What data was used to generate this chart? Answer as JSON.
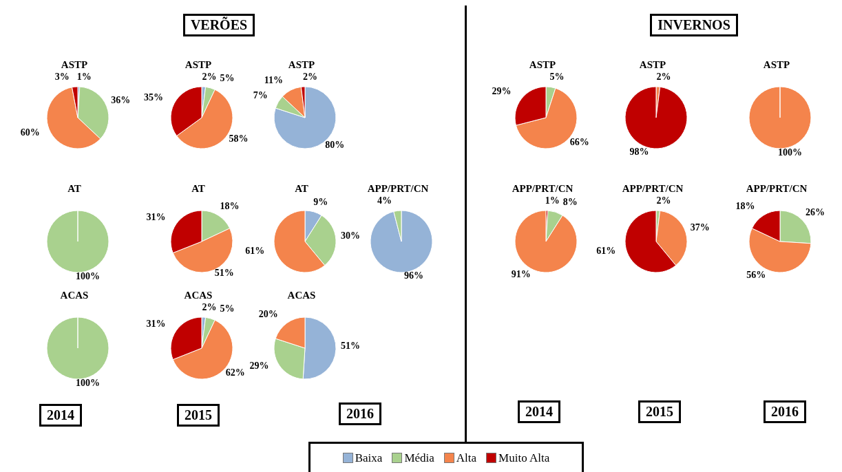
{
  "chart_data": [
    {
      "type": "pie",
      "title": "ASTP",
      "categories": [
        "Baixa",
        "Média",
        "Alta",
        "Muito Alta"
      ],
      "values": [
        1,
        36,
        60,
        3
      ],
      "colors": [
        "#95b3d7",
        "#a9d18e",
        "#f4844c",
        "#c00000"
      ],
      "value_labels": [
        "1%",
        "36%",
        "60%",
        "3%"
      ],
      "legend": "bottom"
    },
    {
      "type": "pie",
      "title": "ASTP",
      "categories": [
        null,
        null,
        null,
        null
      ],
      "values": [
        2,
        5,
        58,
        35
      ],
      "colors": [
        "#95b3d7",
        "#a9d18e",
        "#f4844c",
        "#c00000"
      ],
      "value_labels": [
        "2%",
        "5%",
        "58%",
        "35%"
      ]
    },
    {
      "type": "pie",
      "title": "ASTP",
      "categories": [
        null,
        null,
        null,
        null
      ],
      "values": [
        80,
        7,
        11,
        2
      ],
      "colors": [
        "#95b3d7",
        "#a9d18e",
        "#f4844c",
        "#c00000"
      ],
      "value_labels": [
        "80%",
        "7%",
        "11%",
        "2%"
      ]
    },
    {
      "type": "pie",
      "title": "AT",
      "categories": [
        null
      ],
      "values": [
        100
      ],
      "colors": [
        "#a9d18e"
      ],
      "value_labels": [
        "100%"
      ]
    },
    {
      "type": "pie",
      "title": "AT",
      "categories": [
        null,
        null,
        null
      ],
      "values": [
        18,
        51,
        31
      ],
      "colors": [
        "#a9d18e",
        "#f4844c",
        "#c00000"
      ],
      "value_labels": [
        "18%",
        "51%",
        "31%"
      ]
    },
    {
      "type": "pie",
      "title": "AT",
      "categories": [
        null,
        null,
        null
      ],
      "values": [
        9,
        30,
        61
      ],
      "colors": [
        "#95b3d7",
        "#a9d18e",
        "#f4844c"
      ],
      "value_labels": [
        "9%",
        "30%",
        "61%"
      ]
    },
    {
      "type": "pie",
      "title": "APP/PRT/CN",
      "categories": [
        null,
        null
      ],
      "values": [
        96,
        4
      ],
      "colors": [
        "#95b3d7",
        "#a9d18e"
      ],
      "value_labels": [
        "96%",
        "4%"
      ]
    },
    {
      "type": "pie",
      "title": "ACAS",
      "categories": [
        null
      ],
      "values": [
        100
      ],
      "colors": [
        "#a9d18e"
      ],
      "value_labels": [
        "100%"
      ]
    },
    {
      "type": "pie",
      "title": "ACAS",
      "categories": [
        null,
        null,
        null,
        null
      ],
      "values": [
        2,
        5,
        62,
        31
      ],
      "colors": [
        "#95b3d7",
        "#a9d18e",
        "#f4844c",
        "#c00000"
      ],
      "value_labels": [
        "2%",
        "5%",
        "62%",
        "31%"
      ]
    },
    {
      "type": "pie",
      "title": "ACAS",
      "categories": [
        null,
        null,
        null
      ],
      "values": [
        51,
        29,
        20
      ],
      "colors": [
        "#95b3d7",
        "#a9d18e",
        "#f4844c"
      ],
      "value_labels": [
        "51%",
        "29%",
        "20%"
      ]
    },
    {
      "type": "pie",
      "title": "ASTP",
      "categories": [
        null,
        null,
        null
      ],
      "values": [
        5,
        66,
        29
      ],
      "colors": [
        "#a9d18e",
        "#f4844c",
        "#c00000"
      ],
      "value_labels": [
        "5%",
        "66%",
        "29%"
      ]
    },
    {
      "type": "pie",
      "title": "ASTP",
      "categories": [
        null,
        null
      ],
      "values": [
        2,
        98
      ],
      "colors": [
        "#f4844c",
        "#c00000"
      ],
      "value_labels": [
        "2%",
        "98%"
      ]
    },
    {
      "type": "pie",
      "title": "ASTP",
      "categories": [
        null
      ],
      "values": [
        100
      ],
      "colors": [
        "#f4844c"
      ],
      "value_labels": [
        "100%"
      ]
    },
    {
      "type": "pie",
      "title": "APP/PRT/CN",
      "categories": [
        null,
        null,
        null
      ],
      "values": [
        1,
        8,
        91
      ],
      "colors": [
        "#c00000",
        "#a9d18e",
        "#f4844c"
      ],
      "value_labels": [
        "1%",
        "8%",
        "91%"
      ]
    },
    {
      "type": "pie",
      "title": "APP/PRT/CN",
      "categories": [
        null,
        null,
        null
      ],
      "values": [
        2,
        37,
        61
      ],
      "colors": [
        "#a9d18e",
        "#f4844c",
        "#c00000"
      ],
      "value_labels": [
        "2%",
        "37%",
        "61%"
      ]
    },
    {
      "type": "pie",
      "title": "APP/PRT/CN",
      "categories": [
        null,
        null,
        null
      ],
      "values": [
        26,
        56,
        18
      ],
      "colors": [
        "#a9d18e",
        "#f4844c",
        "#c00000"
      ],
      "value_labels": [
        "26%",
        "56%",
        "18%"
      ]
    },
    {
      "type": "other",
      "annotations": [
        "VERÕES",
        "INVERNOS",
        "2014",
        "2015",
        "2016",
        "2014",
        "2015",
        "2016"
      ]
    }
  ]
}
